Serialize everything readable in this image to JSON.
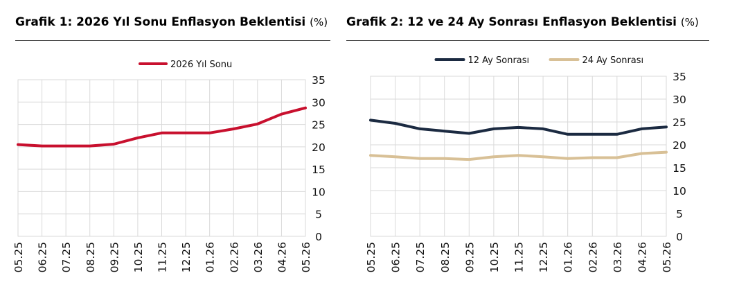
{
  "titles": {
    "left": "Grafik 1: 2026 Yıl Sonu Enflasyon Beklentisi",
    "right": "Grafik 2: 12 ve 24 Ay Sonrası Enflasyon Beklentisi",
    "unit": "(%)"
  },
  "chart_data": [
    {
      "type": "line",
      "title": "Grafik 1: 2026 Yıl Sonu Enflasyon Beklentisi",
      "unit": "(%)",
      "categories": [
        "05.25",
        "06.25",
        "07.25",
        "08.25",
        "09.25",
        "10.25",
        "11.25",
        "12.25",
        "01.26",
        "02.26",
        "03.26",
        "04.26",
        "05.26"
      ],
      "series": [
        {
          "name": "2026 Yıl Sonu",
          "color": "#c8102e",
          "values": [
            20.5,
            20.2,
            20.2,
            20.2,
            20.6,
            22.0,
            23.1,
            23.1,
            23.1,
            24.0,
            25.1,
            27.3,
            28.7
          ]
        }
      ],
      "ylim": [
        0,
        35
      ],
      "yticks": [
        0,
        5,
        10,
        15,
        20,
        25,
        30,
        35
      ],
      "y_axis_side": "right",
      "grid": true,
      "legend": "top-center"
    },
    {
      "type": "line",
      "title": "Grafik 2: 12 ve 24 Ay Sonrası Enflasyon Beklentisi",
      "unit": "(%)",
      "categories": [
        "05.25",
        "06.25",
        "07.25",
        "08.25",
        "09.25",
        "10.25",
        "11.25",
        "12.25",
        "01.26",
        "02.26",
        "03.26",
        "04.26",
        "05.26"
      ],
      "series": [
        {
          "name": "12 Ay Sonrası",
          "color": "#1b2a41",
          "values": [
            25.4,
            24.7,
            23.5,
            23.0,
            22.5,
            23.5,
            23.8,
            23.5,
            22.3,
            22.3,
            22.3,
            23.5,
            23.9
          ]
        },
        {
          "name": "24 Ay Sonrası",
          "color": "#d8c096",
          "values": [
            17.7,
            17.4,
            17.0,
            17.0,
            16.8,
            17.4,
            17.7,
            17.4,
            17.0,
            17.2,
            17.2,
            18.1,
            18.4
          ]
        }
      ],
      "ylim": [
        0,
        35
      ],
      "yticks": [
        0,
        5,
        10,
        15,
        20,
        25,
        30,
        35
      ],
      "y_axis_side": "right",
      "grid": true,
      "legend": "top-center"
    }
  ]
}
